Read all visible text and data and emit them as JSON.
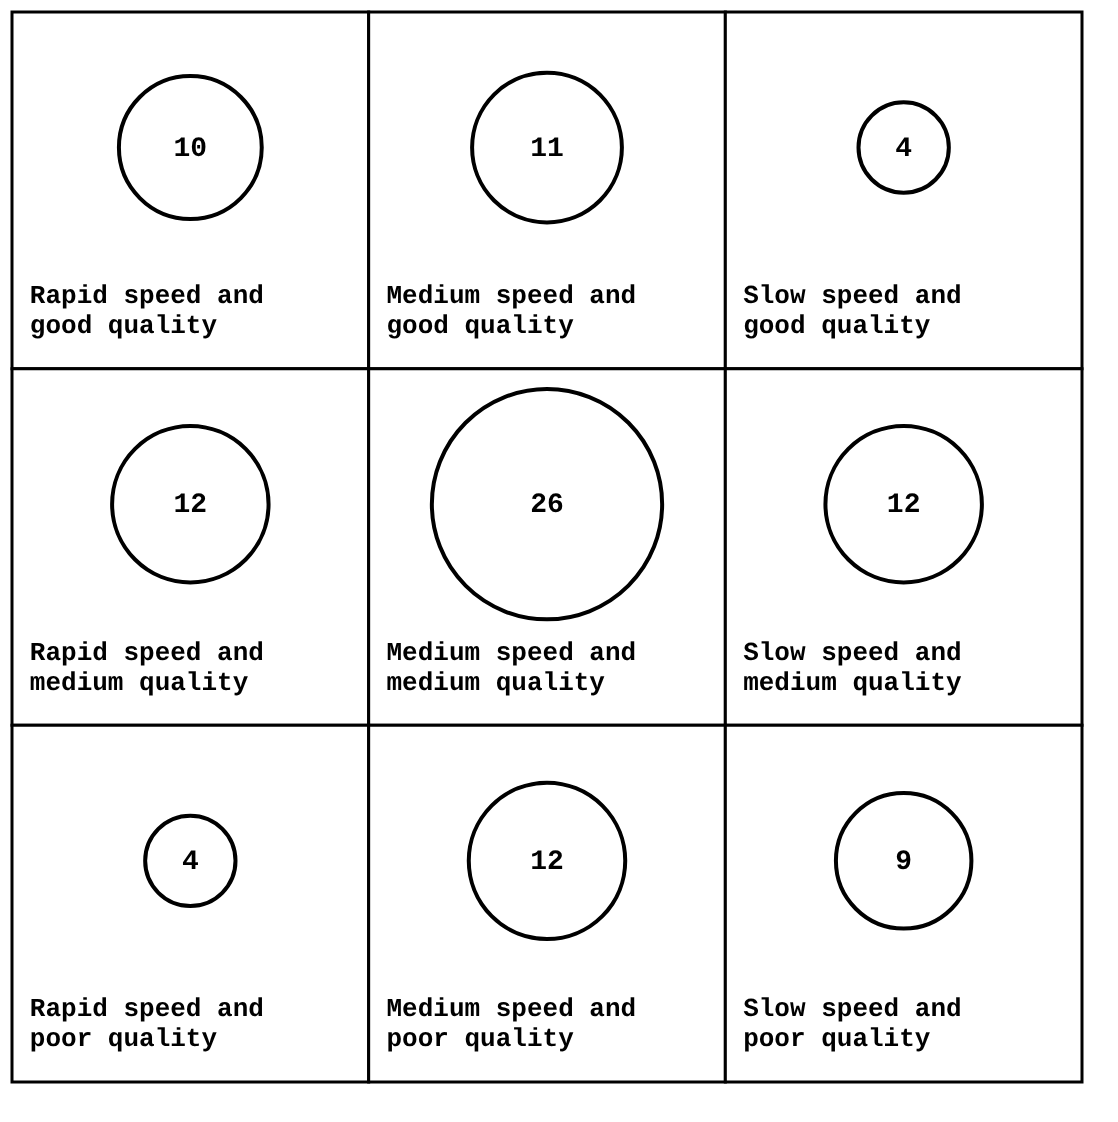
{
  "chart_data": {
    "type": "other",
    "categories": [
      "Rapid speed and good quality",
      "Medium speed and good quality",
      "Slow speed and good quality",
      "Rapid speed and medium quality",
      "Medium speed and medium quality",
      "Slow speed and medium quality",
      "Rapid speed and poor quality",
      "Medium speed and poor quality",
      "Slow speed and poor quality"
    ],
    "values": [
      10,
      11,
      4,
      12,
      26,
      12,
      4,
      12,
      9
    ],
    "data_labels": true
  }
}
